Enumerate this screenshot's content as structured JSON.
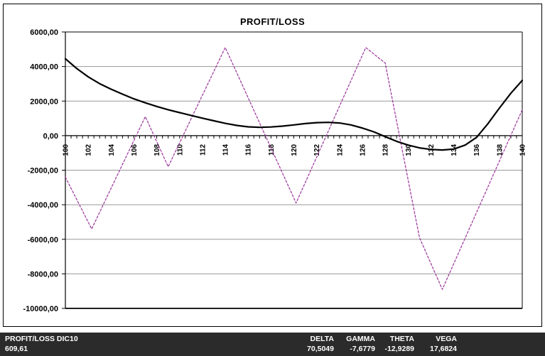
{
  "chart_data": {
    "type": "line",
    "title": "PROFIT/LOSS",
    "xlabel": "",
    "ylabel": "",
    "xlim": [
      100,
      140
    ],
    "ylim": [
      -10000,
      6000
    ],
    "grid": true,
    "legend": "none",
    "x_minor_tick_step": 0.5,
    "x_tick_labels": [
      "100",
      "102",
      "104",
      "106",
      "108",
      "110",
      "112",
      "114",
      "116",
      "118",
      "120",
      "122",
      "124",
      "126",
      "128",
      "130",
      "132",
      "134",
      "136",
      "138",
      "140"
    ],
    "y_ticks": [
      6000,
      4000,
      2000,
      0,
      -2000,
      -4000,
      -6000,
      -8000,
      -10000
    ],
    "y_tick_labels": [
      "6000,00",
      "4000,00",
      "2000,00",
      "0,00",
      "-2000,00",
      "-4000,00",
      "-6000,00",
      "-8000,00",
      "-10000,00"
    ],
    "series": [
      {
        "name": "profit-loss-current",
        "style": "solid",
        "color": "#000000",
        "points": [
          [
            100,
            4450
          ],
          [
            101,
            3880
          ],
          [
            102,
            3400
          ],
          [
            103,
            3010
          ],
          [
            104,
            2690
          ],
          [
            105,
            2400
          ],
          [
            106,
            2130
          ],
          [
            107,
            1900
          ],
          [
            108,
            1690
          ],
          [
            109,
            1500
          ],
          [
            110,
            1330
          ],
          [
            111,
            1170
          ],
          [
            112,
            1010
          ],
          [
            113,
            860
          ],
          [
            114,
            710
          ],
          [
            115,
            590
          ],
          [
            116,
            510
          ],
          [
            117,
            480
          ],
          [
            118,
            500
          ],
          [
            119,
            550
          ],
          [
            120,
            620
          ],
          [
            121,
            700
          ],
          [
            122,
            750
          ],
          [
            123,
            770
          ],
          [
            124,
            730
          ],
          [
            125,
            620
          ],
          [
            126,
            440
          ],
          [
            127,
            220
          ],
          [
            128,
            -60
          ],
          [
            129,
            -330
          ],
          [
            130,
            -550
          ],
          [
            131,
            -710
          ],
          [
            132,
            -800
          ],
          [
            133,
            -830
          ],
          [
            134,
            -780
          ],
          [
            135,
            -550
          ],
          [
            136,
            -100
          ],
          [
            137,
            700
          ],
          [
            138,
            1600
          ],
          [
            139,
            2450
          ],
          [
            140,
            3200
          ]
        ]
      },
      {
        "name": "profit-loss-expiry",
        "style": "dashed",
        "color": "#993399",
        "points": [
          [
            100,
            -2400
          ],
          [
            102.3,
            -5400
          ],
          [
            107,
            1100
          ],
          [
            109,
            -1800
          ],
          [
            114,
            5100
          ],
          [
            120.2,
            -3900
          ],
          [
            126.3,
            5100
          ],
          [
            128,
            4200
          ],
          [
            131,
            -5900
          ],
          [
            133,
            -8900
          ],
          [
            140,
            1500
          ]
        ]
      }
    ],
    "colors": {
      "grid": "#999999",
      "axis": "#000000"
    }
  },
  "status_bar": {
    "background": "#2b2b2b",
    "text_color": "#ffffff",
    "position_title": "PROFIT/LOSS DIC10",
    "position_value": "609,61",
    "greeks": [
      {
        "label": "DELTA",
        "value": "70,5049"
      },
      {
        "label": "GAMMA",
        "value": "-7,6779"
      },
      {
        "label": "THETA",
        "value": "-12,9289"
      },
      {
        "label": "VEGA",
        "value": "17,6824"
      }
    ]
  }
}
